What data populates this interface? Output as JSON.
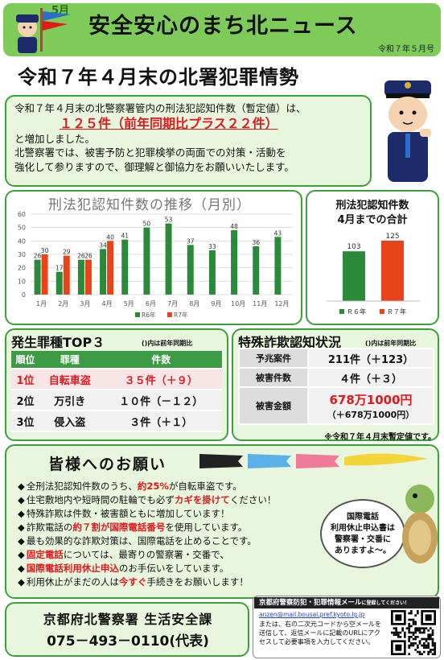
{
  "header": {
    "month_tag": "5月",
    "title": "安全安心のまち北ニュース",
    "date": "令和７年５月号"
  },
  "main_title": "令和７年４月末の北署犯罪情勢",
  "intro": {
    "line1": "令和７年４月末の北警察署管内の刑法犯認知件数（暫定値）は、",
    "highlight": "１２５件（前年同期比プラス２２件）",
    "line2": "と増加しました。",
    "line3": "北警察署では、被害予防と犯罪検挙の両面での対策・活動を",
    "line4": "強化して参りますので、御理解と御協力をお願いいたします。"
  },
  "chart_data": [
    {
      "type": "bar",
      "title": "刑法犯認知件数の推移（月別）",
      "categories": [
        "1月",
        "2月",
        "3月",
        "4月",
        "5月",
        "6月",
        "7月",
        "8月",
        "9月",
        "10月",
        "11月",
        "12月"
      ],
      "ylim": [
        0,
        60
      ],
      "yticks": [
        0,
        10,
        20,
        30,
        40,
        50,
        60
      ],
      "series": [
        {
          "name": "R6年",
          "color": "#2a8a3a",
          "values": [
            26,
            17,
            26,
            34,
            41,
            50,
            53,
            37,
            33,
            48,
            36,
            43
          ]
        },
        {
          "name": "R7年",
          "color": "#e8441c",
          "values": [
            30,
            29,
            26,
            40,
            null,
            null,
            null,
            null,
            null,
            null,
            null,
            null
          ]
        }
      ]
    },
    {
      "type": "bar",
      "title": "刑法犯認知件数 4月までの合計",
      "categories": [
        "R６年",
        "R７年"
      ],
      "values": [
        103,
        125
      ],
      "colors": [
        "#2a8a3a",
        "#e8441c"
      ],
      "ylim": [
        0,
        140
      ]
    }
  ],
  "side": {
    "title1": "刑法犯認知件数",
    "title2": "4月までの合計",
    "legend": [
      "Ｒ６年",
      "Ｒ７年"
    ]
  },
  "top3": {
    "title": "発生罪種TOP３",
    "note": "()内は前年同期比",
    "headers": [
      "順位",
      "罪種",
      "件数"
    ],
    "rows": [
      {
        "rank": "1位",
        "type": "自転車盗",
        "count": "３５件（＋９）"
      },
      {
        "rank": "2位",
        "type": "万引き",
        "count": "１０件（－１２）"
      },
      {
        "rank": "3位",
        "type": "侵入盗",
        "count": "３件（＋１）"
      }
    ]
  },
  "fraud": {
    "title": "特殊詐欺認知状況",
    "note": "()内は前年同期比",
    "rows": [
      {
        "label": "予兆案件",
        "value": "211件（＋123）"
      },
      {
        "label": "被害件数",
        "value": "４件（＋３）"
      },
      {
        "label": "被害金額",
        "value": "678万1000円",
        "sub": "（＋678万1000円）"
      }
    ],
    "foot": "※令和７年４月末暫定値です。"
  },
  "request": {
    "title": "皆様へのお願い",
    "items": [
      [
        "全刑法犯認知件数のうち、",
        "約25%",
        "が自転車盗です。"
      ],
      [
        "住宅敷地内や短時間の駐輪でも必ず",
        "カギを掛けて",
        "ください！"
      ],
      [
        "特殊詐欺は件数・被害額ともに増加しています！",
        "",
        ""
      ],
      [
        "詐欺電話の",
        "約７割が国際電話番号",
        "を使用しています。"
      ],
      [
        "最も効果的な詐欺対策は、国際電話を止めることです。",
        "",
        ""
      ],
      [
        "",
        "固定電話",
        "については、最寄りの警察署・交番で、"
      ],
      [
        "",
        "国際電話利用休止申込",
        "のお手伝いをしています。"
      ],
      [
        "利用休止がまだの人は",
        "今すぐ",
        "手続きをお願いします！"
      ]
    ],
    "bubble": [
      "国際電話",
      "利用休止申込書は",
      "警察署・交番に",
      "ありますよ～。"
    ]
  },
  "department": {
    "name": "京都府北警察署 生活安全課",
    "phone": "075－493－0110(代表)"
  },
  "mail": {
    "heading": "京都府警察防犯・犯罪情報メール",
    "heading_suffix": "に登録してください！",
    "address": "anzen@mail.bousai.pref.kyoto.lg.jp",
    "text": "または、右の二次元コードから空メールを送信して、返信メールに記載のURLにアクセスして必要事項を入力してください。"
  }
}
